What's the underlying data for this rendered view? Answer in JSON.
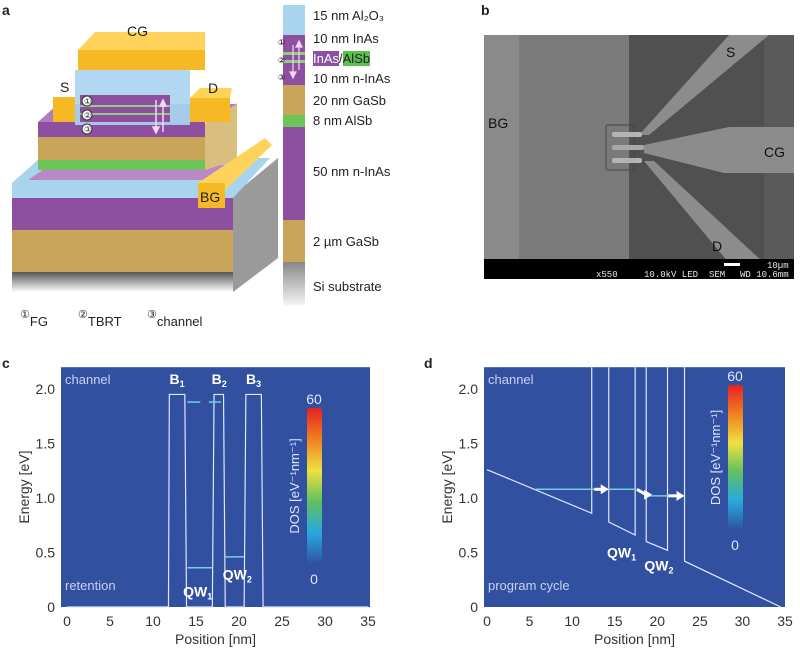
{
  "panels": {
    "a": {
      "letter": "a",
      "gates": {
        "cg": "CG",
        "s": "S",
        "d": "D",
        "bg": "BG"
      },
      "markers": [
        "①",
        "②",
        "③"
      ],
      "legend": [
        {
          "num": "①",
          "label": "FG"
        },
        {
          "num": "②",
          "label": "TBRT"
        },
        {
          "num": "③",
          "label": "channel"
        }
      ],
      "layers": [
        {
          "label": "15 nm Al₂O₃",
          "color": "#a9d4ee"
        },
        {
          "label": "10 nm InAs",
          "color": "#8e4fa0"
        },
        {
          "label_a": "InAs",
          "label_sep": "/",
          "label_b": "AlSb",
          "color": "#8e4fa0",
          "color_b": "#5cbf4e"
        },
        {
          "label": "10 nm n-InAs",
          "color": "#8e4fa0"
        },
        {
          "label": "20 nm GaSb",
          "color": "#c9a55a"
        },
        {
          "label": "8 nm AlSb",
          "color": "#6cc45a"
        },
        {
          "label": "50 nm n-InAs",
          "color": "#8e4fa0"
        },
        {
          "label": "2 µm GaSb",
          "color": "#c9a55a"
        },
        {
          "label": "Si substrate",
          "color": "#9a9a9a"
        }
      ],
      "gate_color": "#f6b824"
    },
    "b": {
      "letter": "b",
      "labels": {
        "s": "S",
        "bg": "BG",
        "cg": "CG",
        "d": "D"
      },
      "info_bar": {
        "mag": "x550",
        "kv": "10.0kV LED",
        "mode": "SEM",
        "wd": "WD 10.6mm",
        "scale": "10µm"
      }
    },
    "c": {
      "letter": "c"
    },
    "d": {
      "letter": "d"
    }
  },
  "chart_data": [
    {
      "type": "line",
      "panel": "c",
      "xlabel": "Position [nm]",
      "ylabel": "Energy [eV]",
      "xlim": [
        0,
        35
      ],
      "ylim": [
        0,
        2.2
      ],
      "xticks": [
        0,
        5,
        10,
        15,
        20,
        25,
        30,
        35
      ],
      "yticks": [
        {
          "v": 0,
          "t": "0"
        },
        {
          "v": 0.5,
          "t": "0.5"
        },
        {
          "v": 1.0,
          "t": "1.0"
        },
        {
          "v": 1.5,
          "t": "1.5"
        },
        {
          "v": 2.0,
          "t": "2.0"
        }
      ],
      "background_color": "#3150a0",
      "annotations": {
        "top": "channel",
        "bottom": "retention"
      },
      "band_profile": [
        [
          [
            0,
            0
          ],
          [
            11.8,
            0
          ],
          [
            11.9,
            1.95
          ],
          [
            13.7,
            1.95
          ],
          [
            13.9,
            0
          ],
          [
            16.9,
            0
          ],
          [
            17.1,
            1.95
          ],
          [
            18.2,
            1.95
          ],
          [
            18.4,
            0
          ],
          [
            20.6,
            0
          ],
          [
            20.8,
            1.95
          ],
          [
            22.6,
            1.95
          ],
          [
            22.8,
            0
          ],
          [
            35,
            0
          ]
        ]
      ],
      "levels": [
        {
          "x": [
            14.0,
            16.9
          ],
          "y": 0.36
        },
        {
          "x": [
            18.4,
            20.6
          ],
          "y": 0.46
        },
        {
          "x": [
            14.0,
            15.5
          ],
          "y": 1.88
        },
        {
          "x": [
            16.5,
            17.9
          ],
          "y": 1.88
        }
      ],
      "barrier_labels": [
        {
          "t": "B",
          "sub": "1",
          "x": 12.8
        },
        {
          "t": "B",
          "sub": "2",
          "x": 17.7
        },
        {
          "t": "B",
          "sub": "3",
          "x": 21.7
        }
      ],
      "well_labels": [
        {
          "t": "QW",
          "sub": "1",
          "x": 15.2,
          "y": 0.14
        },
        {
          "t": "QW",
          "sub": "2",
          "x": 19.8,
          "y": 0.3
        }
      ],
      "arrows": [],
      "colorbar": {
        "label": "DOS [eV⁻¹nm⁻¹]",
        "min": "0",
        "max": "60",
        "colors": [
          "#3150a0",
          "#28a8e0",
          "#60c060",
          "#f0e040",
          "#f08020",
          "#e82020"
        ]
      }
    },
    {
      "type": "line",
      "panel": "d",
      "xlabel": "Position [nm]",
      "ylabel": "Energy [eV]",
      "xlim": [
        0,
        35
      ],
      "ylim": [
        0,
        2.2
      ],
      "xticks": [
        0,
        5,
        10,
        15,
        20,
        25,
        30,
        35
      ],
      "yticks": [
        {
          "v": 0,
          "t": "0"
        },
        {
          "v": 0.5,
          "t": "0.5"
        },
        {
          "v": 1.0,
          "t": "1.0"
        },
        {
          "v": 1.5,
          "t": "1.5"
        },
        {
          "v": 2.0,
          "t": "2.0"
        }
      ],
      "background_color": "#3150a0",
      "annotations": {
        "top": "channel",
        "bottom": "program cycle"
      },
      "band_profile": [
        [
          [
            0,
            1.26
          ],
          [
            12.3,
            0.86
          ],
          [
            12.3,
            2.2
          ]
        ],
        [
          [
            14.3,
            2.2
          ],
          [
            14.3,
            0.78
          ],
          [
            17.4,
            0.66
          ],
          [
            17.4,
            2.2
          ]
        ],
        [
          [
            18.7,
            2.2
          ],
          [
            18.7,
            0.6
          ],
          [
            21.2,
            0.52
          ],
          [
            21.2,
            2.2
          ]
        ],
        [
          [
            23.2,
            2.2
          ],
          [
            23.2,
            0.42
          ],
          [
            34.5,
            0
          ]
        ]
      ],
      "levels": [
        {
          "x": [
            5.7,
            17.4
          ],
          "y": 1.08
        },
        {
          "x": [
            18.5,
            23.2
          ],
          "y": 1.02
        }
      ],
      "barrier_labels": [],
      "well_labels": [
        {
          "t": "QW",
          "sub": "1",
          "x": 15.8,
          "y": 0.5
        },
        {
          "t": "QW",
          "sub": "2",
          "x": 20.2,
          "y": 0.38
        }
      ],
      "arrows": [
        {
          "from": [
            12.6,
            1.08
          ],
          "to": [
            14.3,
            1.08
          ]
        },
        {
          "from": [
            17.6,
            1.08
          ],
          "to": [
            19.4,
            1.03
          ]
        },
        {
          "from": [
            21.3,
            1.02
          ],
          "to": [
            23.2,
            1.02
          ]
        }
      ],
      "colorbar": {
        "label": "DOS [eV⁻¹nm⁻¹]",
        "min": "0",
        "max": "60",
        "colors": [
          "#3150a0",
          "#28a8e0",
          "#60c060",
          "#f0e040",
          "#f08020",
          "#e82020"
        ]
      }
    }
  ]
}
